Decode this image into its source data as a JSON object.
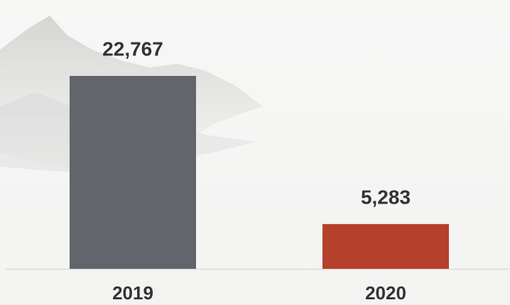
{
  "chart_data": {
    "type": "bar",
    "categories": [
      "2019",
      "2020"
    ],
    "values": [
      22767,
      5283
    ],
    "value_labels": [
      "22,767",
      "5,283"
    ],
    "colors": [
      "#62656b",
      "#b5402b"
    ]
  }
}
